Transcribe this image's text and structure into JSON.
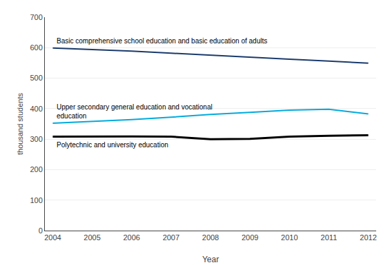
{
  "chart_data": {
    "type": "line",
    "x": [
      2004,
      2005,
      2006,
      2007,
      2008,
      2009,
      2010,
      2011,
      2012
    ],
    "series": [
      {
        "color": "#1a3a6b",
        "values": [
          599,
          594,
          589,
          582,
          575,
          568,
          562,
          556,
          549
        ]
      },
      {
        "color": "#00aadd",
        "values": [
          352,
          358,
          364,
          372,
          381,
          388,
          395,
          398,
          383
        ]
      },
      {
        "color": "#000000",
        "values": [
          308,
          309,
          309,
          308,
          300,
          301,
          308,
          311,
          313
        ]
      }
    ],
    "annotations": [
      "Basic comprehensive school education and basic education of adults",
      "Upper secondary general education and vocational\neducation",
      "Polytechnic and university education"
    ],
    "xlabel": "Year",
    "ylabel": "thousand students",
    "xlim": [
      2003.8,
      2012.2
    ],
    "xticks": [
      2004,
      2005,
      2006,
      2007,
      2008,
      2009,
      2010,
      2011,
      2012
    ],
    "ylim": [
      0,
      700
    ],
    "yticks": [
      0,
      100,
      200,
      300,
      400,
      500,
      600,
      700
    ],
    "grid": "y"
  }
}
